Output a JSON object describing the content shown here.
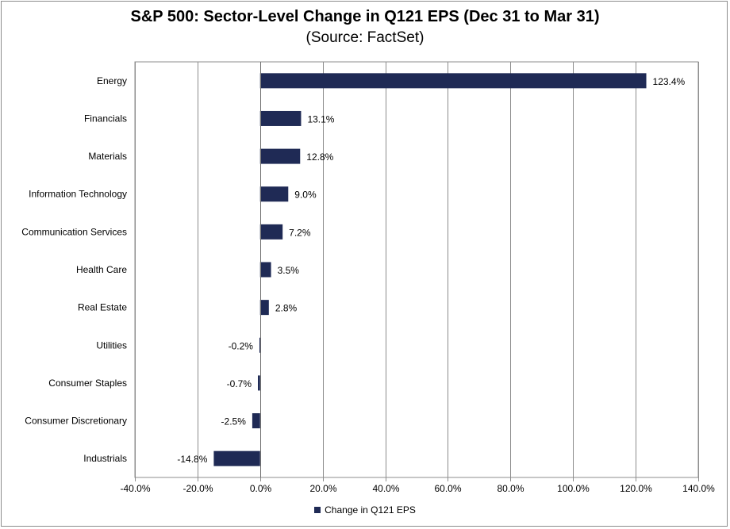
{
  "chart_data": {
    "type": "bar",
    "orientation": "horizontal",
    "title": "S&P 500: Sector-Level Change in Q121 EPS (Dec 31 to Mar 31)",
    "subtitle": "(Source: FactSet)",
    "categories": [
      "Energy",
      "Financials",
      "Materials",
      "Information Technology",
      "Communication Services",
      "Health Care",
      "Real Estate",
      "Utilities",
      "Consumer Staples",
      "Consumer Discretionary",
      "Industrials"
    ],
    "series": [
      {
        "name": "Change in Q121 EPS",
        "values": [
          123.4,
          13.1,
          12.8,
          9.0,
          7.2,
          3.5,
          2.8,
          -0.2,
          -0.7,
          -2.5,
          -14.8
        ],
        "labels": [
          "123.4%",
          "13.1%",
          "12.8%",
          "9.0%",
          "7.2%",
          "3.5%",
          "2.8%",
          "-0.2%",
          "-0.7%",
          "-2.5%",
          "-14.8%"
        ]
      }
    ],
    "xlim": [
      -40,
      140
    ],
    "xticks": [
      -40,
      -20,
      0,
      20,
      40,
      60,
      80,
      100,
      120,
      140
    ],
    "xtick_labels": [
      "-40.0%",
      "-20.0%",
      "0.0%",
      "20.0%",
      "40.0%",
      "60.0%",
      "80.0%",
      "100.0%",
      "120.0%",
      "140.0%"
    ],
    "xlabel": "",
    "ylabel": "",
    "grid": "vertical",
    "legend_position": "bottom",
    "bar_color": "#1f2a55",
    "grid_color": "#8c8c8c"
  }
}
